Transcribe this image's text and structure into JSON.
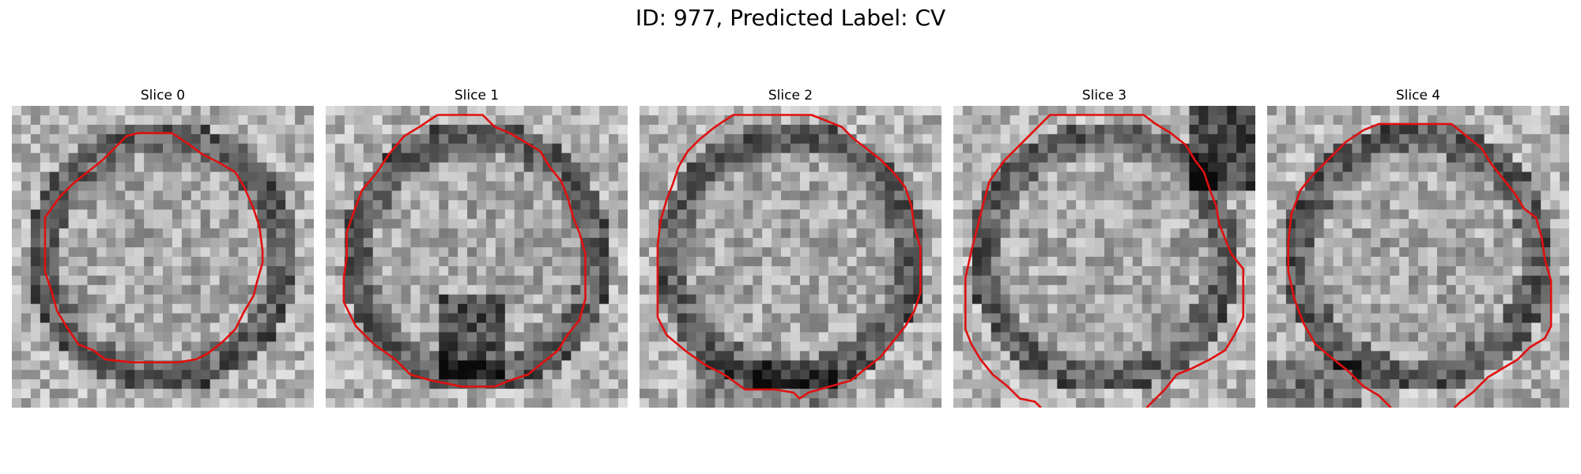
{
  "figure": {
    "title": "ID: 977, Predicted Label: CV",
    "outline_color": "#e01010",
    "colormap": "gray",
    "slices": [
      {
        "label": "Slice 0",
        "seed": 11,
        "shape": "ring",
        "outline": [
          [
            0.42,
            0.09
          ],
          [
            0.53,
            0.09
          ],
          [
            0.59,
            0.13
          ],
          [
            0.63,
            0.16
          ],
          [
            0.69,
            0.19
          ],
          [
            0.74,
            0.22
          ],
          [
            0.77,
            0.27
          ],
          [
            0.8,
            0.34
          ],
          [
            0.82,
            0.4
          ],
          [
            0.83,
            0.48
          ],
          [
            0.83,
            0.52
          ],
          [
            0.81,
            0.59
          ],
          [
            0.8,
            0.63
          ],
          [
            0.77,
            0.68
          ],
          [
            0.74,
            0.74
          ],
          [
            0.7,
            0.78
          ],
          [
            0.65,
            0.82
          ],
          [
            0.61,
            0.84
          ],
          [
            0.55,
            0.85
          ],
          [
            0.47,
            0.85
          ],
          [
            0.4,
            0.85
          ],
          [
            0.31,
            0.84
          ],
          [
            0.27,
            0.81
          ],
          [
            0.22,
            0.79
          ],
          [
            0.18,
            0.73
          ],
          [
            0.15,
            0.68
          ],
          [
            0.13,
            0.61
          ],
          [
            0.11,
            0.55
          ],
          [
            0.11,
            0.46
          ],
          [
            0.11,
            0.37
          ],
          [
            0.16,
            0.3
          ],
          [
            0.2,
            0.26
          ],
          [
            0.25,
            0.22
          ],
          [
            0.3,
            0.18
          ],
          [
            0.34,
            0.14
          ],
          [
            0.38,
            0.1
          ],
          [
            0.42,
            0.09
          ]
        ]
      },
      {
        "label": "Slice 1",
        "seed": 23,
        "shape": "ring-dark-bottom",
        "outline": [
          [
            0.37,
            0.03
          ],
          [
            0.52,
            0.03
          ],
          [
            0.56,
            0.07
          ],
          [
            0.61,
            0.09
          ],
          [
            0.66,
            0.12
          ],
          [
            0.71,
            0.15
          ],
          [
            0.74,
            0.2
          ],
          [
            0.78,
            0.25
          ],
          [
            0.8,
            0.3
          ],
          [
            0.82,
            0.37
          ],
          [
            0.84,
            0.42
          ],
          [
            0.86,
            0.49
          ],
          [
            0.86,
            0.57
          ],
          [
            0.86,
            0.64
          ],
          [
            0.84,
            0.71
          ],
          [
            0.8,
            0.76
          ],
          [
            0.77,
            0.81
          ],
          [
            0.72,
            0.85
          ],
          [
            0.67,
            0.89
          ],
          [
            0.61,
            0.91
          ],
          [
            0.56,
            0.93
          ],
          [
            0.45,
            0.93
          ],
          [
            0.4,
            0.92
          ],
          [
            0.35,
            0.91
          ],
          [
            0.28,
            0.89
          ],
          [
            0.23,
            0.84
          ],
          [
            0.16,
            0.79
          ],
          [
            0.1,
            0.73
          ],
          [
            0.06,
            0.65
          ],
          [
            0.06,
            0.57
          ],
          [
            0.07,
            0.5
          ],
          [
            0.07,
            0.42
          ],
          [
            0.09,
            0.36
          ],
          [
            0.12,
            0.28
          ],
          [
            0.17,
            0.22
          ],
          [
            0.21,
            0.16
          ],
          [
            0.26,
            0.1
          ],
          [
            0.31,
            0.07
          ],
          [
            0.37,
            0.03
          ]
        ]
      },
      {
        "label": "Slice 2",
        "seed": 37,
        "shape": "ring-dark-bottom-left",
        "outline": [
          [
            0.31,
            0.03
          ],
          [
            0.57,
            0.03
          ],
          [
            0.67,
            0.07
          ],
          [
            0.71,
            0.11
          ],
          [
            0.75,
            0.14
          ],
          [
            0.8,
            0.18
          ],
          [
            0.84,
            0.22
          ],
          [
            0.88,
            0.27
          ],
          [
            0.9,
            0.33
          ],
          [
            0.91,
            0.4
          ],
          [
            0.93,
            0.47
          ],
          [
            0.93,
            0.55
          ],
          [
            0.93,
            0.62
          ],
          [
            0.91,
            0.68
          ],
          [
            0.88,
            0.73
          ],
          [
            0.84,
            0.78
          ],
          [
            0.8,
            0.83
          ],
          [
            0.75,
            0.87
          ],
          [
            0.7,
            0.91
          ],
          [
            0.63,
            0.93
          ],
          [
            0.56,
            0.95
          ],
          [
            0.53,
            0.97
          ],
          [
            0.51,
            0.95
          ],
          [
            0.45,
            0.94
          ],
          [
            0.35,
            0.94
          ],
          [
            0.28,
            0.89
          ],
          [
            0.22,
            0.86
          ],
          [
            0.15,
            0.81
          ],
          [
            0.09,
            0.76
          ],
          [
            0.06,
            0.7
          ],
          [
            0.06,
            0.62
          ],
          [
            0.06,
            0.54
          ],
          [
            0.06,
            0.46
          ],
          [
            0.07,
            0.38
          ],
          [
            0.09,
            0.31
          ],
          [
            0.11,
            0.26
          ],
          [
            0.13,
            0.2
          ],
          [
            0.16,
            0.15
          ],
          [
            0.2,
            0.11
          ],
          [
            0.25,
            0.07
          ],
          [
            0.31,
            0.03
          ]
        ]
      },
      {
        "label": "Slice 3",
        "seed": 41,
        "shape": "ring-dark-top-right",
        "outline": [
          [
            0.29,
            1.0
          ],
          [
            0.27,
            0.98
          ],
          [
            0.22,
            0.97
          ],
          [
            0.18,
            0.93
          ],
          [
            0.13,
            0.89
          ],
          [
            0.09,
            0.84
          ],
          [
            0.06,
            0.79
          ],
          [
            0.04,
            0.74
          ],
          [
            0.04,
            0.68
          ],
          [
            0.04,
            0.57
          ],
          [
            0.06,
            0.48
          ],
          [
            0.08,
            0.4
          ],
          [
            0.1,
            0.32
          ],
          [
            0.12,
            0.25
          ],
          [
            0.17,
            0.18
          ],
          [
            0.22,
            0.13
          ],
          [
            0.28,
            0.07
          ],
          [
            0.32,
            0.03
          ],
          [
            0.63,
            0.03
          ],
          [
            0.67,
            0.06
          ],
          [
            0.72,
            0.09
          ],
          [
            0.77,
            0.13
          ],
          [
            0.8,
            0.18
          ],
          [
            0.83,
            0.22
          ],
          [
            0.85,
            0.28
          ],
          [
            0.87,
            0.33
          ],
          [
            0.88,
            0.39
          ],
          [
            0.9,
            0.44
          ],
          [
            0.92,
            0.49
          ],
          [
            0.96,
            0.54
          ],
          [
            0.96,
            0.6
          ],
          [
            0.96,
            0.7
          ],
          [
            0.93,
            0.76
          ],
          [
            0.9,
            0.81
          ],
          [
            0.85,
            0.84
          ],
          [
            0.79,
            0.87
          ],
          [
            0.74,
            0.89
          ],
          [
            0.7,
            0.94
          ],
          [
            0.66,
            0.98
          ],
          [
            0.64,
            1.0
          ]
        ]
      },
      {
        "label": "Slice 4",
        "seed": 53,
        "shape": "ring-bright-corners",
        "outline": [
          [
            0.41,
            1.0
          ],
          [
            0.37,
            0.96
          ],
          [
            0.32,
            0.93
          ],
          [
            0.27,
            0.88
          ],
          [
            0.22,
            0.84
          ],
          [
            0.16,
            0.79
          ],
          [
            0.12,
            0.72
          ],
          [
            0.09,
            0.64
          ],
          [
            0.07,
            0.55
          ],
          [
            0.07,
            0.45
          ],
          [
            0.08,
            0.36
          ],
          [
            0.11,
            0.28
          ],
          [
            0.15,
            0.23
          ],
          [
            0.2,
            0.18
          ],
          [
            0.26,
            0.12
          ],
          [
            0.32,
            0.08
          ],
          [
            0.37,
            0.06
          ],
          [
            0.61,
            0.06
          ],
          [
            0.66,
            0.1
          ],
          [
            0.71,
            0.14
          ],
          [
            0.74,
            0.19
          ],
          [
            0.78,
            0.24
          ],
          [
            0.82,
            0.29
          ],
          [
            0.85,
            0.34
          ],
          [
            0.89,
            0.37
          ],
          [
            0.91,
            0.44
          ],
          [
            0.92,
            0.51
          ],
          [
            0.94,
            0.58
          ],
          [
            0.94,
            0.66
          ],
          [
            0.94,
            0.73
          ],
          [
            0.92,
            0.77
          ],
          [
            0.87,
            0.8
          ],
          [
            0.83,
            0.84
          ],
          [
            0.78,
            0.87
          ],
          [
            0.73,
            0.9
          ],
          [
            0.68,
            0.95
          ],
          [
            0.64,
            0.98
          ],
          [
            0.62,
            1.0
          ]
        ]
      }
    ]
  }
}
